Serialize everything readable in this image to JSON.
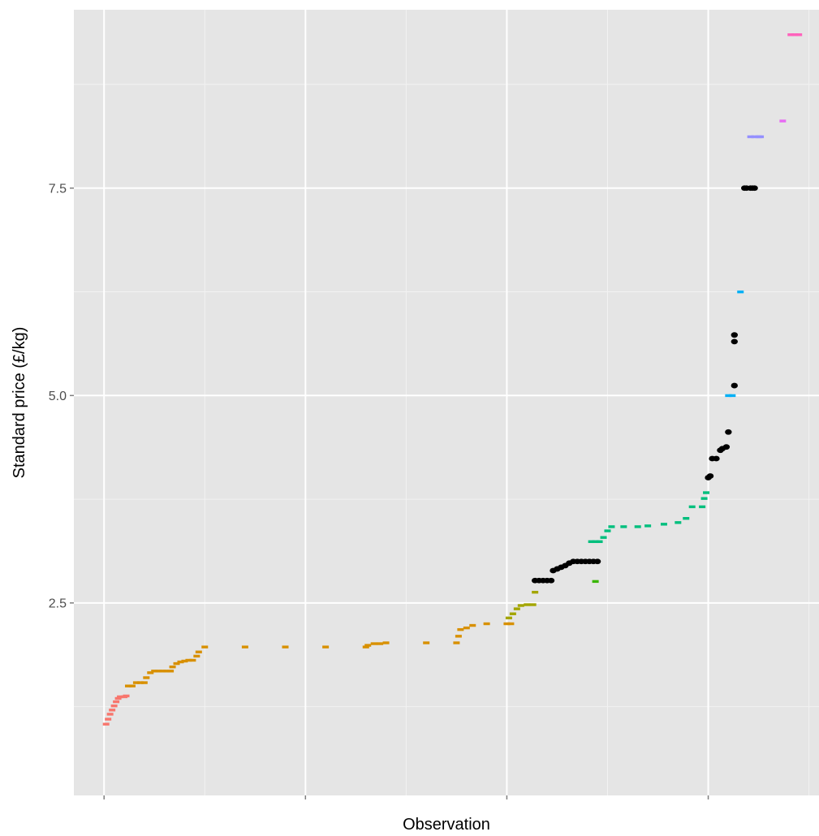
{
  "chart_data": {
    "type": "scatter",
    "title": "",
    "xlabel": "Observation",
    "ylabel": "Standard price (£/kg)",
    "xlim": [
      -15,
      355
    ],
    "ylim": [
      0.18,
      9.65
    ],
    "y_ticks": [
      2.5,
      5.0,
      7.5
    ],
    "y_tick_labels": [
      "2.5",
      "5.0",
      "7.5"
    ],
    "x_major_ticks": [
      0,
      100,
      200,
      300
    ],
    "x_minor_ticks": [
      50,
      150,
      250,
      350
    ],
    "grid": true,
    "legend": "none",
    "panel_color": "#e5e5e5",
    "grid_color": "#ffffff",
    "series": [
      {
        "color": "#f8766d",
        "shape": "dash",
        "points": [
          [
            1,
            1.04
          ],
          [
            2,
            1.1
          ],
          [
            3,
            1.16
          ],
          [
            4,
            1.21
          ],
          [
            5,
            1.26
          ],
          [
            6,
            1.31
          ],
          [
            7,
            1.35
          ],
          [
            8,
            1.37
          ],
          [
            10,
            1.37
          ],
          [
            11,
            1.38
          ]
        ]
      },
      {
        "color": "#d89000",
        "shape": "dash",
        "points": [
          [
            12,
            1.5
          ],
          [
            14,
            1.5
          ],
          [
            16,
            1.54
          ],
          [
            18,
            1.54
          ],
          [
            20,
            1.54
          ],
          [
            21,
            1.6
          ],
          [
            23,
            1.66
          ],
          [
            25,
            1.68
          ],
          [
            27,
            1.68
          ],
          [
            29,
            1.68
          ],
          [
            31,
            1.68
          ],
          [
            33,
            1.68
          ],
          [
            34,
            1.73
          ],
          [
            36,
            1.77
          ],
          [
            38,
            1.79
          ],
          [
            40,
            1.8
          ],
          [
            42,
            1.81
          ],
          [
            44,
            1.81
          ],
          [
            46,
            1.86
          ],
          [
            47,
            1.91
          ],
          [
            50,
            1.97
          ],
          [
            70,
            1.97
          ],
          [
            90,
            1.97
          ],
          [
            110,
            1.97
          ],
          [
            130,
            1.97
          ],
          [
            131,
            1.99
          ],
          [
            134,
            2.01
          ],
          [
            137,
            2.01
          ],
          [
            140,
            2.02
          ],
          [
            160,
            2.02
          ],
          [
            175,
            2.02
          ],
          [
            176,
            2.1
          ],
          [
            177,
            2.18
          ],
          [
            180,
            2.2
          ],
          [
            183,
            2.23
          ],
          [
            190,
            2.25
          ],
          [
            200,
            2.25
          ],
          [
            202,
            2.25
          ]
        ]
      },
      {
        "color": "#a3a500",
        "shape": "dash",
        "points": [
          [
            201,
            2.32
          ],
          [
            203,
            2.37
          ],
          [
            205,
            2.43
          ],
          [
            207,
            2.47
          ],
          [
            210,
            2.48
          ],
          [
            213,
            2.48
          ],
          [
            214,
            2.63
          ]
        ]
      },
      {
        "color": "#000000",
        "shape": "dot",
        "points": [
          [
            214,
            2.77
          ],
          [
            216,
            2.77
          ],
          [
            218,
            2.77
          ],
          [
            220,
            2.77
          ],
          [
            222,
            2.77
          ],
          [
            223,
            2.89
          ],
          [
            225,
            2.91
          ],
          [
            227,
            2.93
          ],
          [
            229,
            2.95
          ],
          [
            231,
            2.98
          ],
          [
            233,
            3.0
          ],
          [
            235,
            3.0
          ],
          [
            237,
            3.0
          ],
          [
            239,
            3.0
          ],
          [
            241,
            3.0
          ],
          [
            243,
            3.0
          ],
          [
            245,
            3.0
          ]
        ]
      },
      {
        "color": "#39b600",
        "shape": "dash",
        "points": [
          [
            244,
            2.76
          ]
        ]
      },
      {
        "color": "#00bf7d",
        "shape": "dash",
        "points": [
          [
            242,
            3.24
          ],
          [
            244,
            3.24
          ],
          [
            246,
            3.24
          ],
          [
            248,
            3.29
          ],
          [
            250,
            3.37
          ],
          [
            252,
            3.42
          ],
          [
            258,
            3.42
          ],
          [
            265,
            3.42
          ],
          [
            270,
            3.43
          ],
          [
            278,
            3.45
          ],
          [
            285,
            3.47
          ],
          [
            289,
            3.52
          ],
          [
            292,
            3.66
          ],
          [
            297,
            3.66
          ],
          [
            298,
            3.76
          ],
          [
            299,
            3.83
          ]
        ]
      },
      {
        "color": "#000000",
        "shape": "dot",
        "points": [
          [
            300,
            4.01
          ],
          [
            301,
            4.03
          ],
          [
            302,
            4.24
          ],
          [
            304,
            4.24
          ],
          [
            306,
            4.34
          ],
          [
            307,
            4.36
          ],
          [
            309,
            4.38
          ],
          [
            310,
            4.56
          ],
          [
            313,
            5.12
          ],
          [
            313,
            5.65
          ],
          [
            313,
            5.73
          ],
          [
            318,
            7.5
          ],
          [
            319,
            7.5
          ],
          [
            321,
            7.5
          ],
          [
            322,
            7.5
          ],
          [
            323,
            7.5
          ]
        ]
      },
      {
        "color": "#00b0f6",
        "shape": "dash",
        "points": [
          [
            310,
            5.0
          ],
          [
            312,
            5.0
          ],
          [
            316,
            6.25
          ]
        ]
      },
      {
        "color": "#e76bf3",
        "shape": "dash",
        "points": [
          [
            337,
            8.31
          ]
        ]
      },
      {
        "color": "#9590ff",
        "shape": "dash",
        "points": [
          [
            321,
            8.12
          ],
          [
            323,
            8.12
          ],
          [
            325,
            8.12
          ],
          [
            326,
            8.12
          ]
        ]
      },
      {
        "color": "#ff62bc",
        "shape": "dash",
        "points": [
          [
            341,
            9.35
          ],
          [
            343,
            9.35
          ],
          [
            345,
            9.35
          ]
        ]
      }
    ]
  }
}
